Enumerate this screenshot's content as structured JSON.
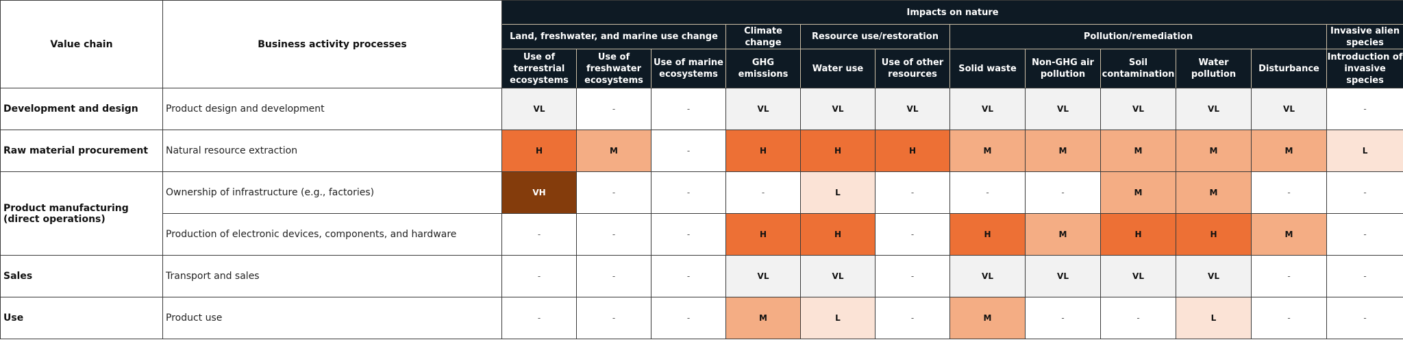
{
  "header": {
    "value_chain": "Value chain",
    "business_activity": "Business activity processes",
    "impacts_title": "Impacts on nature"
  },
  "groups": [
    {
      "label": "Land, freshwater, and marine use change"
    },
    {
      "label": "Climate change"
    },
    {
      "label": "Resource use/restoration"
    },
    {
      "label": "Pollution/remediation"
    },
    {
      "label": "Invasive alien species"
    }
  ],
  "columns": [
    {
      "label": "Use of terrestrial ecosystems"
    },
    {
      "label": "Use of freshwater ecosystems"
    },
    {
      "label": "Use of marine ecosystems"
    },
    {
      "label": "GHG emissions"
    },
    {
      "label": "Water use"
    },
    {
      "label": "Use of other resources"
    },
    {
      "label": "Solid waste"
    },
    {
      "label": "Non-GHG air pollution"
    },
    {
      "label": "Soil contamination"
    },
    {
      "label": "Water pollution"
    },
    {
      "label": "Disturbance"
    },
    {
      "label": "Introduction of invasive species"
    }
  ],
  "stages": [
    {
      "label": "Development and design"
    },
    {
      "label": "Raw material procurement"
    },
    {
      "label": "Product manufacturing (direct operations)"
    },
    {
      "label": "Sales"
    },
    {
      "label": "Use"
    }
  ],
  "rows": [
    {
      "process": "Product design and development",
      "values": [
        "VL",
        "-",
        "-",
        "VL",
        "VL",
        "VL",
        "VL",
        "VL",
        "VL",
        "VL",
        "VL",
        "-"
      ]
    },
    {
      "process": "Natural resource extraction",
      "values": [
        "H",
        "M",
        "-",
        "H",
        "H",
        "H",
        "M",
        "M",
        "M",
        "M",
        "M",
        "L"
      ]
    },
    {
      "process": "Ownership of infrastructure (e.g., factories)",
      "values": [
        "VH",
        "-",
        "-",
        "-",
        "L",
        "-",
        "-",
        "-",
        "M",
        "M",
        "-",
        "-"
      ]
    },
    {
      "process": "Production of electronic devices, components, and hardware",
      "values": [
        "-",
        "-",
        "-",
        "H",
        "H",
        "-",
        "H",
        "M",
        "H",
        "H",
        "M",
        "-"
      ]
    },
    {
      "process": "Transport and sales",
      "values": [
        "-",
        "-",
        "-",
        "VL",
        "VL",
        "-",
        "VL",
        "VL",
        "VL",
        "VL",
        "-",
        "-"
      ]
    },
    {
      "process": "Product use",
      "values": [
        "-",
        "-",
        "-",
        "M",
        "L",
        "-",
        "M",
        "-",
        "-",
        "L",
        "-",
        "-"
      ]
    }
  ],
  "level_colors": {
    "VH": "#843c0c",
    "H": "#ed7035",
    "M": "#f4ad84",
    "L": "#fbe3d6",
    "VL": "#f2f2f2",
    "-": "#ffffff"
  }
}
